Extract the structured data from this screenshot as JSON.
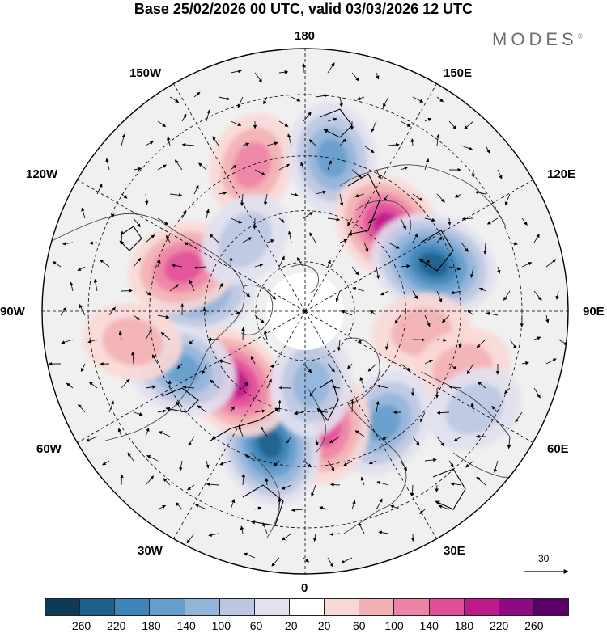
{
  "header": {
    "title": "Base 25/02/2026 00 UTC, valid 03/03/2026 12 UTC",
    "brand": "MODES",
    "brand_mark": "©"
  },
  "map": {
    "projection": "polar-stereographic-north",
    "longitude_labels": {
      "top": "180",
      "top_right": "150E",
      "upper_right": "120E",
      "right": "90E",
      "lower_right": "60E",
      "bottom_right": "30E",
      "bottom": "0",
      "bottom_left": "30W",
      "lower_left": "60W",
      "left": "90W",
      "upper_left": "120W",
      "top_left": "150W"
    },
    "reference_vector": "30",
    "anomaly_centers": [
      {
        "lat": 58,
        "lon": -100,
        "value": -150,
        "kind": "negative"
      },
      {
        "lat": 52,
        "lon": -110,
        "value": 170,
        "kind": "positive"
      },
      {
        "lat": 45,
        "lon": -160,
        "value": 100,
        "kind": "positive"
      },
      {
        "lat": 45,
        "lon": 170,
        "value": -140,
        "kind": "negative"
      },
      {
        "lat": 55,
        "lon": 135,
        "value": 200,
        "kind": "positive"
      },
      {
        "lat": 50,
        "lon": 110,
        "value": -230,
        "kind": "negative"
      },
      {
        "lat": 55,
        "lon": 80,
        "value": 90,
        "kind": "positive"
      },
      {
        "lat": 42,
        "lon": 70,
        "value": 60,
        "kind": "positive"
      },
      {
        "lat": 50,
        "lon": 35,
        "value": -170,
        "kind": "negative"
      },
      {
        "lat": 55,
        "lon": 10,
        "value": 150,
        "kind": "positive"
      },
      {
        "lat": 50,
        "lon": -15,
        "value": -220,
        "kind": "negative"
      },
      {
        "lat": 60,
        "lon": -45,
        "value": 200,
        "kind": "positive"
      },
      {
        "lat": 50,
        "lon": -65,
        "value": -150,
        "kind": "negative"
      },
      {
        "lat": 68,
        "lon": 5,
        "value": -130,
        "kind": "negative"
      },
      {
        "lat": 35,
        "lon": 60,
        "value": -80,
        "kind": "negative"
      },
      {
        "lat": 62,
        "lon": -140,
        "value": -90,
        "kind": "negative"
      },
      {
        "lat": 40,
        "lon": -80,
        "value": 80,
        "kind": "positive"
      }
    ]
  },
  "colorbar": {
    "ticks": [
      "-260",
      "-220",
      "-180",
      "-140",
      "-100",
      "-60",
      "-20",
      "20",
      "60",
      "100",
      "140",
      "180",
      "220",
      "260"
    ],
    "colors": [
      "#0e3a5a",
      "#1f5f8c",
      "#3f84b8",
      "#669fcc",
      "#93b5da",
      "#bcc8e2",
      "#e1e1ef",
      "#ffffff",
      "#f9d9d7",
      "#f3b1b5",
      "#ee83a6",
      "#e14f9b",
      "#bf1a8c",
      "#8d0a82",
      "#5a0066"
    ]
  }
}
